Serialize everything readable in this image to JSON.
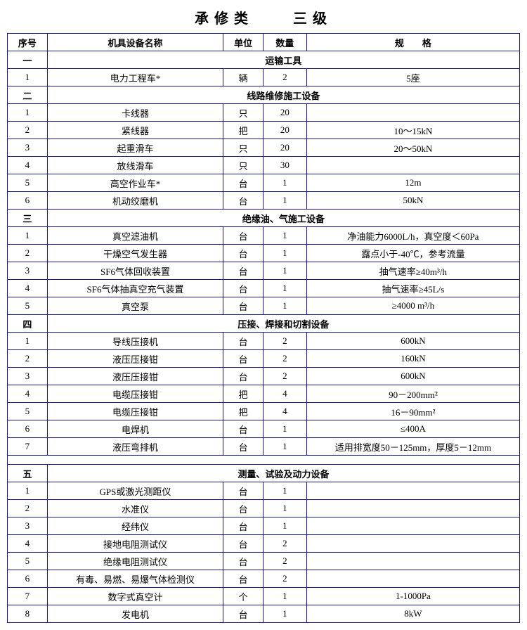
{
  "title": "承修类　　三级",
  "headers": {
    "seq": "序号",
    "name": "机具设备名称",
    "unit": "单位",
    "qty": "数量",
    "spec": "规　　格"
  },
  "sections": [
    {
      "no": "一",
      "title": "运输工具",
      "rows": [
        {
          "n": "1",
          "name": "电力工程车*",
          "unit": "辆",
          "qty": "2",
          "spec": "5座"
        }
      ]
    },
    {
      "no": "二",
      "title": "线路维修施工设备",
      "rows": [
        {
          "n": "1",
          "name": "卡线器",
          "unit": "只",
          "qty": "20",
          "spec": ""
        },
        {
          "n": "2",
          "name": "紧线器",
          "unit": "把",
          "qty": "20",
          "spec": "10～15kN"
        },
        {
          "n": "3",
          "name": "起重滑车",
          "unit": "只",
          "qty": "20",
          "spec": "20～50kN"
        },
        {
          "n": "4",
          "name": "放线滑车",
          "unit": "只",
          "qty": "30",
          "spec": ""
        },
        {
          "n": "5",
          "name": "高空作业车*",
          "unit": "台",
          "qty": "1",
          "spec": "12m"
        },
        {
          "n": "6",
          "name": "机动绞磨机",
          "unit": "台",
          "qty": "1",
          "spec": "50kN"
        }
      ]
    },
    {
      "no": "三",
      "title": "绝缘油、气施工设备",
      "rows": [
        {
          "n": "1",
          "name": "真空滤油机",
          "unit": "台",
          "qty": "1",
          "spec": "净油能力6000L/h，真空度＜60Pa"
        },
        {
          "n": "2",
          "name": "干燥空气发生器",
          "unit": "台",
          "qty": "1",
          "spec": "露点小于-40℃，参考流量"
        },
        {
          "n": "3",
          "name": "SF6气体回收装置",
          "unit": "台",
          "qty": "1",
          "spec": "抽气速率≥40m³/h"
        },
        {
          "n": "4",
          "name": "SF6气体抽真空充气装置",
          "unit": "台",
          "qty": "1",
          "spec": "抽气速率≥45L/s"
        },
        {
          "n": "5",
          "name": "真空泵",
          "unit": "台",
          "qty": "1",
          "spec": "≥4000 m³/h"
        }
      ]
    },
    {
      "no": "四",
      "title": "压接、焊接和切割设备",
      "rows": [
        {
          "n": "1",
          "name": "导线压接机",
          "unit": "台",
          "qty": "2",
          "spec": "600kN"
        },
        {
          "n": "2",
          "name": "液压压接钳",
          "unit": "台",
          "qty": "2",
          "spec": "160kN"
        },
        {
          "n": "3",
          "name": "液压压接钳",
          "unit": "台",
          "qty": "2",
          "spec": "600kN"
        },
        {
          "n": "4",
          "name": "电缆压接钳",
          "unit": "把",
          "qty": "4",
          "spec": "90－200mm²"
        },
        {
          "n": "5",
          "name": "电缆压接钳",
          "unit": "把",
          "qty": "4",
          "spec": "16－90mm²"
        },
        {
          "n": "6",
          "name": "电焊机",
          "unit": "台",
          "qty": "1",
          "spec": "≤400A"
        },
        {
          "n": "7",
          "name": "液压弯排机",
          "unit": "台",
          "qty": "1",
          "spec": "适用排宽度50－125mm，厚度5－12mm"
        }
      ]
    },
    {
      "no": "五",
      "title": "测量、试验及动力设备",
      "gap": true,
      "rows": [
        {
          "n": "1",
          "name": "GPS或激光测距仪",
          "unit": "台",
          "qty": "1",
          "spec": ""
        },
        {
          "n": "2",
          "name": "水准仪",
          "unit": "台",
          "qty": "1",
          "spec": ""
        },
        {
          "n": "3",
          "name": "经纬仪",
          "unit": "台",
          "qty": "1",
          "spec": ""
        },
        {
          "n": "4",
          "name": "接地电阻测试仪",
          "unit": "台",
          "qty": "2",
          "spec": ""
        },
        {
          "n": "5",
          "name": "绝缘电阻测试仪",
          "unit": "台",
          "qty": "2",
          "spec": ""
        },
        {
          "n": "6",
          "name": "有毒、易燃、易爆气体检测仪",
          "unit": "台",
          "qty": "2",
          "spec": ""
        },
        {
          "n": "7",
          "name": "数字式真空计",
          "unit": "个",
          "qty": "1",
          "spec": "1-1000Pa"
        },
        {
          "n": "8",
          "name": "发电机",
          "unit": "台",
          "qty": "1",
          "spec": "8kW"
        }
      ]
    }
  ]
}
